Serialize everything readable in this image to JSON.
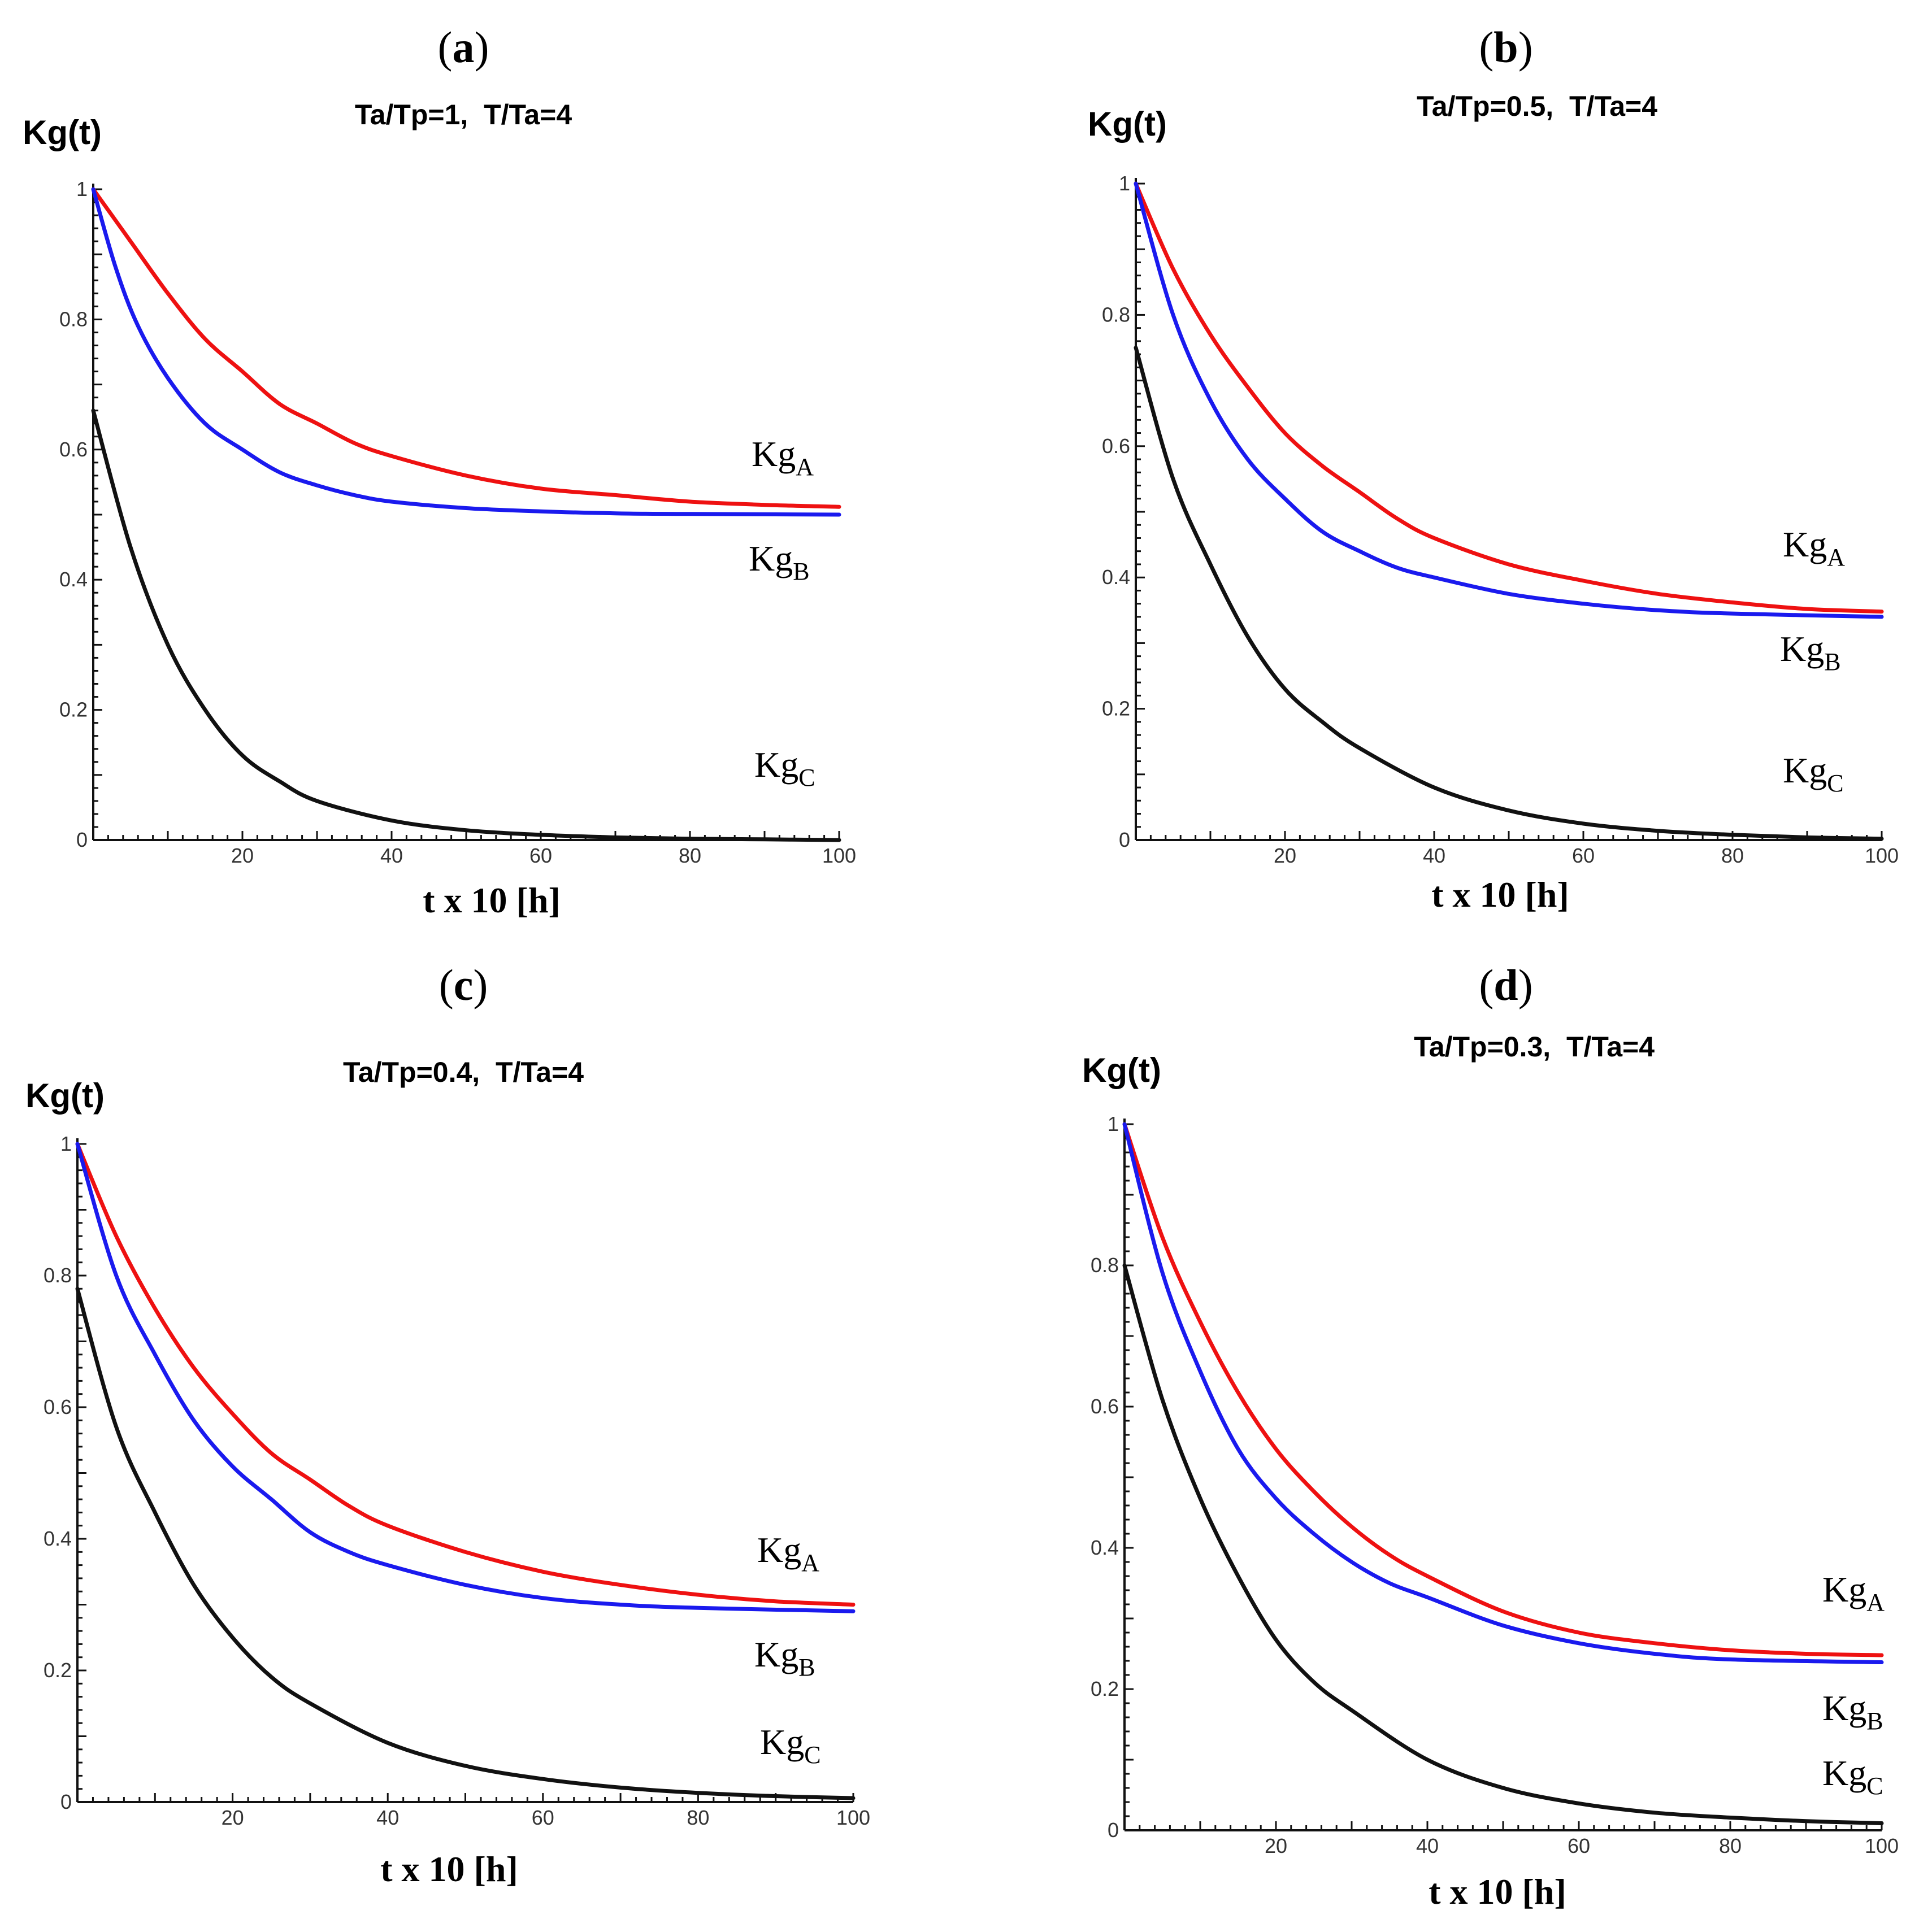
{
  "chart_data": [
    {
      "type": "line",
      "panel_label": "a",
      "title": "Ta/Tp=1,  T/Ta=4",
      "ylabel": "Kg(t)",
      "xlabel": "t x 10 [h]",
      "xlim": [
        0,
        100
      ],
      "ylim": [
        0,
        1
      ],
      "xticks": [
        20,
        40,
        60,
        80,
        100
      ],
      "yticks": [
        0,
        0.2,
        0.4,
        0.6,
        0.8,
        1
      ],
      "ytick_labels": [
        "0",
        "0.2",
        "0.4",
        "0.6",
        "0.8",
        "1"
      ],
      "grid": false,
      "series": [
        {
          "name": "Kg",
          "subscript": "A",
          "color": "#ee1111",
          "x": [
            0,
            5,
            10,
            15,
            20,
            25,
            30,
            35,
            40,
            50,
            60,
            70,
            80,
            90,
            100
          ],
          "values": [
            1.0,
            0.92,
            0.84,
            0.77,
            0.72,
            0.67,
            0.64,
            0.61,
            0.59,
            0.56,
            0.54,
            0.53,
            0.52,
            0.515,
            0.512
          ]
        },
        {
          "name": "Kg",
          "subscript": "B",
          "color": "#1a1aee",
          "x": [
            0,
            3,
            6,
            10,
            15,
            20,
            25,
            30,
            35,
            40,
            50,
            60,
            70,
            80,
            100
          ],
          "values": [
            1.0,
            0.88,
            0.79,
            0.71,
            0.64,
            0.6,
            0.565,
            0.545,
            0.53,
            0.52,
            0.51,
            0.505,
            0.502,
            0.501,
            0.5
          ]
        },
        {
          "name": "Kg",
          "subscript": "C",
          "color": "#111111",
          "x": [
            0,
            5,
            10,
            15,
            20,
            25,
            30,
            40,
            50,
            60,
            70,
            80,
            90,
            100
          ],
          "values": [
            0.66,
            0.45,
            0.3,
            0.2,
            0.13,
            0.09,
            0.06,
            0.03,
            0.015,
            0.008,
            0.004,
            0.002,
            0.001,
            0.0
          ]
        }
      ]
    },
    {
      "type": "line",
      "panel_label": "b",
      "title": "Ta/Tp=0.5,  T/Ta=4",
      "ylabel": "Kg(t)",
      "xlabel": "t x 10 [h]",
      "xlim": [
        0,
        100
      ],
      "ylim": [
        0,
        1
      ],
      "xticks": [
        20,
        40,
        60,
        80,
        100
      ],
      "yticks": [
        0,
        0.2,
        0.4,
        0.6,
        0.8,
        1
      ],
      "ytick_labels": [
        "0",
        "0.2",
        "0.4",
        "0.6",
        "0.8",
        "1"
      ],
      "grid": false,
      "series": [
        {
          "name": "Kg",
          "subscript": "A",
          "color": "#ee1111",
          "x": [
            0,
            5,
            10,
            15,
            20,
            25,
            30,
            35,
            40,
            50,
            60,
            70,
            80,
            90,
            100
          ],
          "values": [
            1.0,
            0.87,
            0.77,
            0.69,
            0.62,
            0.57,
            0.53,
            0.49,
            0.46,
            0.42,
            0.395,
            0.375,
            0.362,
            0.352,
            0.348
          ]
        },
        {
          "name": "Kg",
          "subscript": "B",
          "color": "#1a1aee",
          "x": [
            0,
            5,
            10,
            15,
            20,
            25,
            30,
            35,
            40,
            50,
            60,
            70,
            80,
            100
          ],
          "values": [
            1.0,
            0.8,
            0.67,
            0.58,
            0.52,
            0.47,
            0.44,
            0.415,
            0.4,
            0.375,
            0.36,
            0.35,
            0.345,
            0.34
          ]
        },
        {
          "name": "Kg",
          "subscript": "C",
          "color": "#111111",
          "x": [
            0,
            5,
            10,
            15,
            20,
            25,
            30,
            40,
            50,
            60,
            70,
            80,
            90,
            100
          ],
          "values": [
            0.75,
            0.55,
            0.42,
            0.31,
            0.23,
            0.18,
            0.14,
            0.08,
            0.045,
            0.025,
            0.014,
            0.008,
            0.004,
            0.002
          ]
        }
      ]
    },
    {
      "type": "line",
      "panel_label": "c",
      "title": "Ta/Tp=0.4,  T/Ta=4",
      "ylabel": "Kg(t)",
      "xlabel": "t x 10 [h]",
      "xlim": [
        0,
        100
      ],
      "ylim": [
        0,
        1
      ],
      "xticks": [
        20,
        40,
        60,
        80,
        100
      ],
      "yticks": [
        0,
        0.2,
        0.4,
        0.6,
        0.8,
        1
      ],
      "ytick_labels": [
        "0",
        "0.2",
        "0.4",
        "0.6",
        "0.8",
        "1"
      ],
      "grid": false,
      "series": [
        {
          "name": "Kg",
          "subscript": "A",
          "color": "#ee1111",
          "x": [
            0,
            5,
            10,
            15,
            20,
            25,
            30,
            35,
            40,
            50,
            60,
            70,
            80,
            90,
            100
          ],
          "values": [
            1.0,
            0.86,
            0.75,
            0.66,
            0.59,
            0.53,
            0.49,
            0.45,
            0.42,
            0.38,
            0.35,
            0.33,
            0.315,
            0.305,
            0.3
          ]
        },
        {
          "name": "Kg",
          "subscript": "B",
          "color": "#1a1aee",
          "x": [
            0,
            5,
            10,
            15,
            20,
            25,
            30,
            35,
            40,
            50,
            60,
            70,
            80,
            100
          ],
          "values": [
            1.0,
            0.8,
            0.68,
            0.58,
            0.51,
            0.46,
            0.41,
            0.38,
            0.36,
            0.33,
            0.31,
            0.3,
            0.295,
            0.29
          ]
        },
        {
          "name": "Kg",
          "subscript": "C",
          "color": "#111111",
          "x": [
            0,
            5,
            10,
            15,
            20,
            25,
            30,
            40,
            50,
            60,
            70,
            80,
            90,
            100
          ],
          "values": [
            0.78,
            0.57,
            0.44,
            0.33,
            0.25,
            0.19,
            0.15,
            0.09,
            0.055,
            0.035,
            0.022,
            0.014,
            0.009,
            0.006
          ]
        }
      ]
    },
    {
      "type": "line",
      "panel_label": "d",
      "title": "Ta/Tp=0.3,  T/Ta=4",
      "ylabel": "Kg(t)",
      "xlabel": "t x 10 [h]",
      "xlim": [
        0,
        100
      ],
      "ylim": [
        0,
        1
      ],
      "xticks": [
        20,
        40,
        60,
        80,
        100
      ],
      "yticks": [
        0,
        0.2,
        0.4,
        0.6,
        0.8,
        1
      ],
      "ytick_labels": [
        "0",
        "0.2",
        "0.4",
        "0.6",
        "0.8",
        "1"
      ],
      "grid": false,
      "series": [
        {
          "name": "Kg",
          "subscript": "A",
          "color": "#ee1111",
          "x": [
            0,
            5,
            10,
            15,
            20,
            25,
            30,
            35,
            40,
            50,
            60,
            70,
            80,
            90,
            100
          ],
          "values": [
            1.0,
            0.84,
            0.72,
            0.62,
            0.54,
            0.48,
            0.43,
            0.39,
            0.36,
            0.31,
            0.28,
            0.265,
            0.255,
            0.25,
            0.248
          ]
        },
        {
          "name": "Kg",
          "subscript": "B",
          "color": "#1a1aee",
          "x": [
            0,
            5,
            10,
            15,
            20,
            25,
            30,
            35,
            40,
            50,
            60,
            70,
            80,
            100
          ],
          "values": [
            1.0,
            0.79,
            0.65,
            0.54,
            0.47,
            0.42,
            0.38,
            0.35,
            0.33,
            0.29,
            0.265,
            0.25,
            0.242,
            0.238
          ]
        },
        {
          "name": "Kg",
          "subscript": "C",
          "color": "#111111",
          "x": [
            0,
            5,
            10,
            15,
            20,
            25,
            30,
            40,
            50,
            60,
            70,
            80,
            90,
            100
          ],
          "values": [
            0.8,
            0.61,
            0.47,
            0.36,
            0.27,
            0.21,
            0.17,
            0.1,
            0.06,
            0.038,
            0.025,
            0.018,
            0.013,
            0.01
          ]
        }
      ]
    }
  ]
}
